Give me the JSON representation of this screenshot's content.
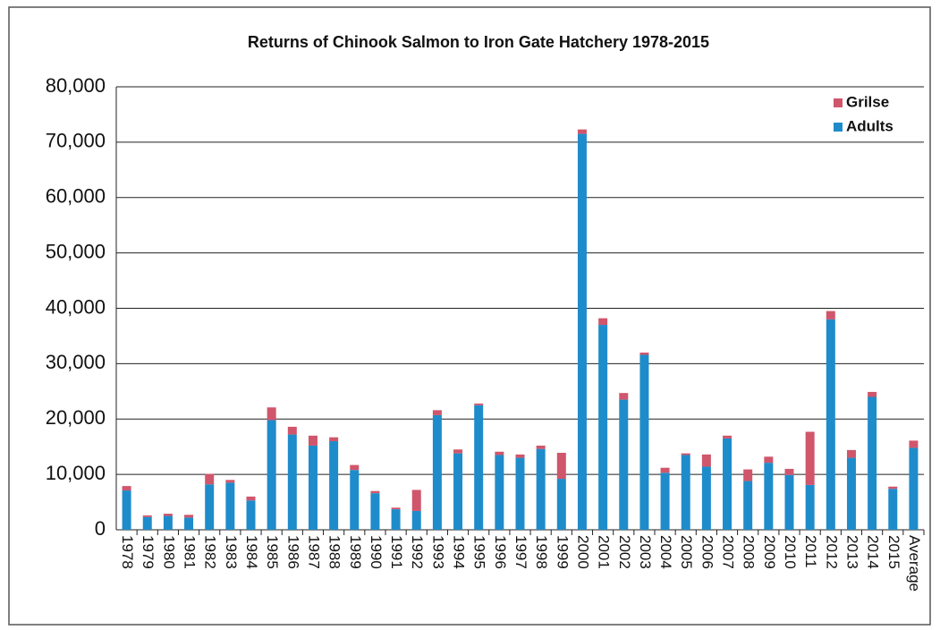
{
  "chart_data": {
    "type": "stacked_bar",
    "title": "Returns of Chinook Salmon to Iron Gate Hatchery  1978-2015",
    "categories": [
      "1978",
      "1979",
      "1980",
      "1981",
      "1982",
      "1983",
      "1984",
      "1985",
      "1986",
      "1987",
      "1988",
      "1989",
      "1990",
      "1991",
      "1992",
      "1993",
      "1994",
      "1995",
      "1996",
      "1997",
      "1998",
      "1999",
      "2000",
      "2001",
      "2002",
      "2003",
      "2004",
      "2005",
      "2006",
      "2007",
      "2008",
      "2009",
      "2010",
      "2011",
      "2012",
      "2013",
      "2014",
      "2015",
      "Average"
    ],
    "series": [
      {
        "name": "Adults",
        "color": "#1e8ccb",
        "values": [
          7100,
          2300,
          2500,
          2200,
          8200,
          8500,
          5300,
          19800,
          17200,
          15200,
          16000,
          10800,
          6600,
          3700,
          3400,
          20700,
          13800,
          22500,
          13500,
          13000,
          14600,
          9200,
          71500,
          37000,
          23500,
          31600,
          10300,
          13500,
          11400,
          16500,
          8800,
          12100,
          9900,
          8100,
          38000,
          13000,
          24000,
          7400,
          14800
        ]
      },
      {
        "name": "Grilse",
        "color": "#d0566b",
        "values": [
          800,
          300,
          400,
          500,
          1900,
          500,
          700,
          2300,
          1400,
          1800,
          700,
          900,
          400,
          300,
          3800,
          900,
          700,
          300,
          600,
          600,
          600,
          4700,
          800,
          1200,
          1200,
          400,
          900,
          300,
          2200,
          500,
          2100,
          1100,
          1100,
          9600,
          1500,
          1400,
          900,
          400,
          1300
        ]
      }
    ],
    "ylim": [
      0,
      80000
    ],
    "yticks": [
      0,
      {
        "value": 10000,
        "label": "10,000"
      },
      {
        "value": 20000,
        "label": "20,000"
      },
      {
        "value": 30000,
        "label": "30,000"
      },
      {
        "value": 40000,
        "label": "40,000"
      },
      {
        "value": 50000,
        "label": "50,000"
      },
      {
        "value": 60000,
        "label": "60,000"
      },
      {
        "value": 70000,
        "label": "70,000"
      },
      {
        "value": 80000,
        "label": "80,000"
      }
    ],
    "grid": true,
    "legend": "top-right"
  }
}
